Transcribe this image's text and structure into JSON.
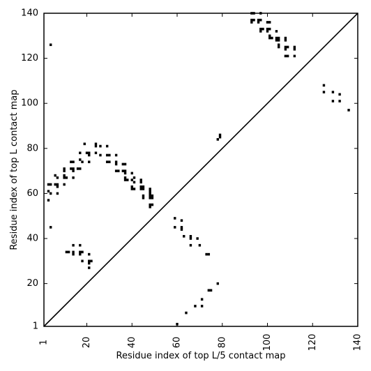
{
  "chart_data": {
    "type": "scatter",
    "title": "",
    "xlabel": "Residue index of top L/5 contact map",
    "ylabel": "Residue index of top L contact map",
    "xlim": [
      1,
      140
    ],
    "ylim": [
      1,
      140
    ],
    "x_ticks": [
      1,
      20,
      40,
      60,
      80,
      100,
      120,
      140
    ],
    "y_ticks": [
      1,
      20,
      40,
      60,
      80,
      100,
      120,
      140
    ],
    "diagonal": true,
    "grid": false,
    "legend": "none",
    "marker_color": "#000000",
    "points": [
      [
        4,
        126
      ],
      [
        3,
        64
      ],
      [
        4,
        64
      ],
      [
        3,
        61
      ],
      [
        4,
        60
      ],
      [
        3,
        57
      ],
      [
        4,
        45
      ],
      [
        6,
        68
      ],
      [
        7,
        67
      ],
      [
        6,
        64
      ],
      [
        7,
        64
      ],
      [
        7,
        63
      ],
      [
        7,
        60
      ],
      [
        10,
        71
      ],
      [
        10,
        70
      ],
      [
        10,
        68
      ],
      [
        11,
        67
      ],
      [
        10,
        67
      ],
      [
        10,
        64
      ],
      [
        13,
        74
      ],
      [
        14,
        74
      ],
      [
        13,
        71
      ],
      [
        14,
        71
      ],
      [
        14,
        70
      ],
      [
        14,
        67
      ],
      [
        17,
        78
      ],
      [
        17,
        75
      ],
      [
        18,
        74
      ],
      [
        17,
        71
      ],
      [
        16,
        71
      ],
      [
        19,
        82
      ],
      [
        20,
        78
      ],
      [
        21,
        78
      ],
      [
        21,
        77
      ],
      [
        21,
        74
      ],
      [
        24,
        82
      ],
      [
        24,
        81
      ],
      [
        24,
        78
      ],
      [
        26,
        81
      ],
      [
        26,
        77
      ],
      [
        29,
        81
      ],
      [
        29,
        77
      ],
      [
        30,
        77
      ],
      [
        29,
        74
      ],
      [
        30,
        74
      ],
      [
        33,
        77
      ],
      [
        33,
        74
      ],
      [
        33,
        73
      ],
      [
        33,
        70
      ],
      [
        34,
        70
      ],
      [
        36,
        73
      ],
      [
        37,
        73
      ],
      [
        36,
        70
      ],
      [
        37,
        70
      ],
      [
        37,
        69
      ],
      [
        37,
        67
      ],
      [
        38,
        66
      ],
      [
        37,
        66
      ],
      [
        40,
        69
      ],
      [
        41,
        67
      ],
      [
        40,
        66
      ],
      [
        41,
        65
      ],
      [
        40,
        62
      ],
      [
        41,
        62
      ],
      [
        40,
        63
      ],
      [
        44,
        66
      ],
      [
        44,
        65
      ],
      [
        44,
        63
      ],
      [
        45,
        63
      ],
      [
        44,
        62
      ],
      [
        45,
        62
      ],
      [
        45,
        59
      ],
      [
        45,
        58
      ],
      [
        48,
        62
      ],
      [
        48,
        61
      ],
      [
        48,
        60
      ],
      [
        48,
        59
      ],
      [
        49,
        59
      ],
      [
        48,
        58
      ],
      [
        49,
        58
      ],
      [
        48,
        55
      ],
      [
        49,
        55
      ],
      [
        48,
        54
      ],
      [
        11,
        34
      ],
      [
        12,
        34
      ],
      [
        14,
        37
      ],
      [
        14,
        34
      ],
      [
        14,
        33
      ],
      [
        17,
        37
      ],
      [
        17,
        34
      ],
      [
        18,
        34
      ],
      [
        17,
        33
      ],
      [
        18,
        30
      ],
      [
        21,
        33
      ],
      [
        21,
        30
      ],
      [
        22,
        30
      ],
      [
        21,
        29
      ],
      [
        21,
        27
      ],
      [
        59,
        49
      ],
      [
        62,
        48
      ],
      [
        62,
        45
      ],
      [
        62,
        44
      ],
      [
        59,
        45
      ],
      [
        63,
        41
      ],
      [
        66,
        41
      ],
      [
        66,
        40
      ],
      [
        66,
        37
      ],
      [
        69,
        40
      ],
      [
        70,
        37
      ],
      [
        73,
        33
      ],
      [
        74,
        33
      ],
      [
        74,
        17
      ],
      [
        75,
        17
      ],
      [
        78,
        20
      ],
      [
        71,
        13
      ],
      [
        71,
        10
      ],
      [
        68,
        10
      ],
      [
        64,
        7
      ],
      [
        60,
        2
      ],
      [
        78,
        84
      ],
      [
        79,
        85
      ],
      [
        79,
        86
      ],
      [
        93,
        140
      ],
      [
        94,
        140
      ],
      [
        97,
        140
      ],
      [
        93,
        137
      ],
      [
        94,
        137
      ],
      [
        93,
        136
      ],
      [
        96,
        137
      ],
      [
        97,
        137
      ],
      [
        96,
        136
      ],
      [
        97,
        133
      ],
      [
        98,
        133
      ],
      [
        97,
        132
      ],
      [
        100,
        136
      ],
      [
        101,
        136
      ],
      [
        100,
        133
      ],
      [
        101,
        133
      ],
      [
        100,
        132
      ],
      [
        101,
        130
      ],
      [
        101,
        129
      ],
      [
        102,
        129
      ],
      [
        104,
        132
      ],
      [
        104,
        129
      ],
      [
        105,
        129
      ],
      [
        104,
        128
      ],
      [
        105,
        128
      ],
      [
        105,
        126
      ],
      [
        105,
        125
      ],
      [
        108,
        129
      ],
      [
        108,
        128
      ],
      [
        108,
        125
      ],
      [
        109,
        125
      ],
      [
        108,
        124
      ],
      [
        108,
        121
      ],
      [
        109,
        121
      ],
      [
        112,
        125
      ],
      [
        112,
        124
      ],
      [
        112,
        121
      ],
      [
        125,
        108
      ],
      [
        125,
        105
      ],
      [
        129,
        105
      ],
      [
        129,
        101
      ],
      [
        132,
        104
      ],
      [
        132,
        101
      ],
      [
        136,
        97
      ]
    ]
  }
}
